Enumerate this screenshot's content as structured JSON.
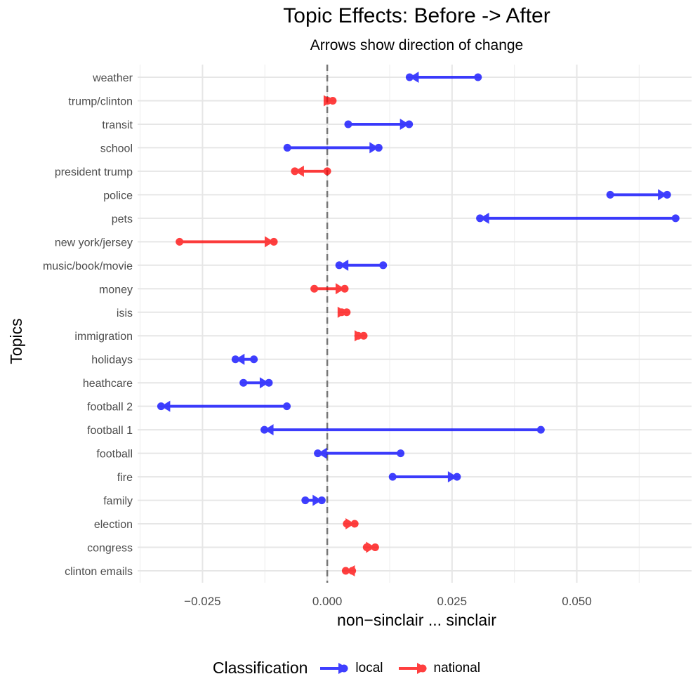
{
  "chart_data": {
    "type": "dumbbell-arrow",
    "title": "Topic Effects: Before -> After",
    "subtitle": "Arrows show direction of change",
    "xlabel": "non−sinclair ... sinclair",
    "ylabel": "Topics",
    "xlim": [
      -0.038,
      0.073
    ],
    "x_ticks": [
      -0.025,
      0.0,
      0.025,
      0.05
    ],
    "x_tick_labels": [
      "−0.025",
      "0.000",
      "0.025",
      "0.050"
    ],
    "reference_line": 0.0,
    "grid": true,
    "legend": {
      "title": "Classification",
      "position": "bottom",
      "entries": [
        {
          "name": "local",
          "color": "#0000FF"
        },
        {
          "name": "national",
          "color": "#FF0000"
        }
      ]
    },
    "topics": [
      {
        "topic": "weather",
        "class": "local",
        "before": 0.0302,
        "after": 0.0165
      },
      {
        "topic": "trump/clinton",
        "class": "national",
        "before": 0.0001,
        "after": 0.0011
      },
      {
        "topic": "transit",
        "class": "local",
        "before": 0.0042,
        "after": 0.0164
      },
      {
        "topic": "school",
        "class": "local",
        "before": -0.008,
        "after": 0.0103
      },
      {
        "topic": "president trump",
        "class": "national",
        "before": 0.0,
        "after": -0.0065
      },
      {
        "topic": "police",
        "class": "local",
        "before": 0.0567,
        "after": 0.0681
      },
      {
        "topic": "pets",
        "class": "local",
        "before": 0.0698,
        "after": 0.0306
      },
      {
        "topic": "new york/jersey",
        "class": "national",
        "before": -0.0296,
        "after": -0.0107
      },
      {
        "topic": "music/book/movie",
        "class": "local",
        "before": 0.0112,
        "after": 0.0024
      },
      {
        "topic": "money",
        "class": "national",
        "before": -0.0026,
        "after": 0.0035
      },
      {
        "topic": "isis",
        "class": "national",
        "before": 0.0029,
        "after": 0.0039
      },
      {
        "topic": "immigration",
        "class": "national",
        "before": 0.0062,
        "after": 0.0073
      },
      {
        "topic": "holidays",
        "class": "local",
        "before": -0.0147,
        "after": -0.0184
      },
      {
        "topic": "heathcare",
        "class": "local",
        "before": -0.0168,
        "after": -0.0117
      },
      {
        "topic": "football 2",
        "class": "local",
        "before": -0.0081,
        "after": -0.0333
      },
      {
        "topic": "football 1",
        "class": "local",
        "before": 0.0428,
        "after": -0.0126
      },
      {
        "topic": "football",
        "class": "local",
        "before": 0.0147,
        "after": -0.0019
      },
      {
        "topic": "fire",
        "class": "local",
        "before": 0.0131,
        "after": 0.026
      },
      {
        "topic": "family",
        "class": "local",
        "before": -0.0044,
        "after": -0.0011
      },
      {
        "topic": "election",
        "class": "national",
        "before": 0.0039,
        "after": 0.0055
      },
      {
        "topic": "congress",
        "class": "national",
        "before": 0.0079,
        "after": 0.0096
      },
      {
        "topic": "clinton emails",
        "class": "national",
        "before": 0.005,
        "after": 0.0037
      }
    ]
  }
}
